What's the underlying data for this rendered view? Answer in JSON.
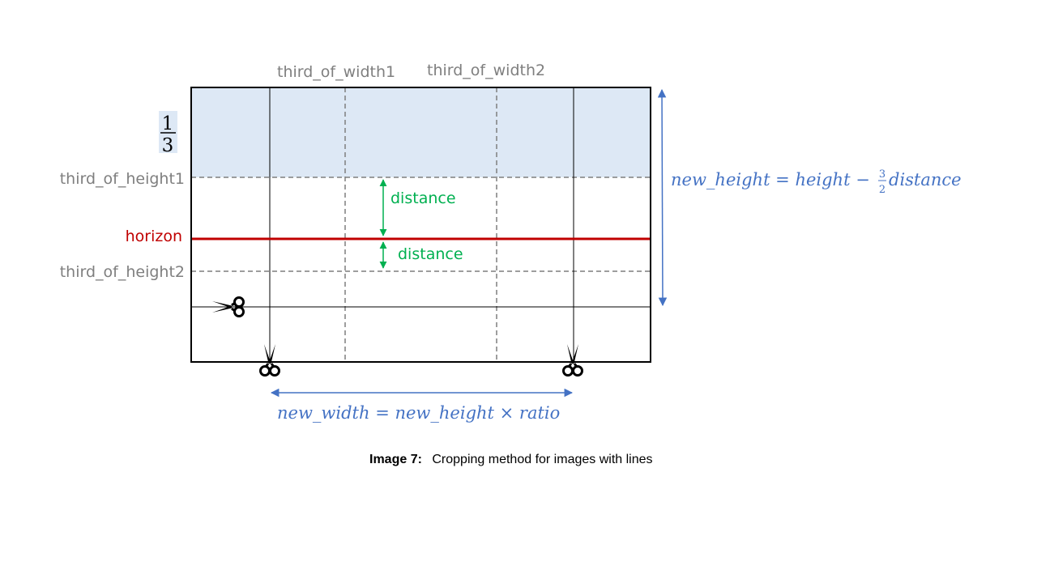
{
  "labels": {
    "third_of_width1": "third_of_width1",
    "third_of_width2": "third_of_width2",
    "third_of_height1": "third_of_height1",
    "third_of_height2": "third_of_height2",
    "horizon": "horizon",
    "distance_upper": "distance",
    "distance_lower": "distance",
    "fraction_numerator": "1",
    "fraction_denominator": "3"
  },
  "formulas": {
    "new_height_lhs": "new_height = height −",
    "new_height_num": "3",
    "new_height_den": "2",
    "new_height_rhs": "distance",
    "new_width": "new_width = new_height × ratio"
  },
  "caption": {
    "bold": "Image 7:",
    "text": "Cropping method for images with lines"
  },
  "colors": {
    "highlight": "#dde8f5",
    "horizon": "#c00000",
    "distance": "#00b050",
    "formula": "#4472c4",
    "grid_dashed": "#7f7f7f"
  },
  "icons": [
    "scissors-icon-left",
    "scissors-icon-bottom-left",
    "scissors-icon-bottom-right"
  ]
}
